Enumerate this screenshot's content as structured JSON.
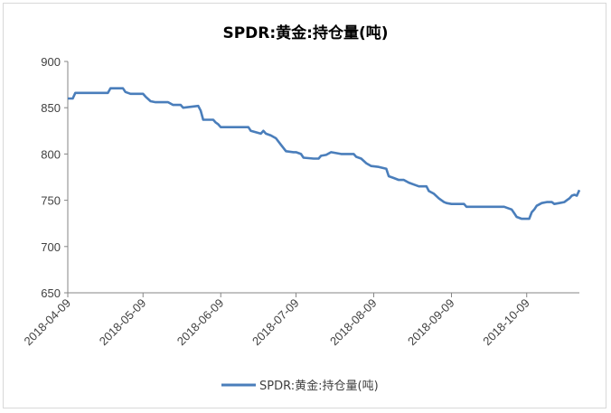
{
  "chart_data": {
    "type": "line",
    "title": "SPDR:黄金:持仓量(吨)",
    "xlabel": "",
    "ylabel": "",
    "ylim": [
      650,
      900
    ],
    "y_ticks": [
      650,
      700,
      750,
      800,
      850,
      900
    ],
    "x_tick_labels": [
      "2018-04-09",
      "2018-05-09",
      "2018-06-09",
      "2018-07-09",
      "2018-08-09",
      "2018-09-09",
      "2018-10-09"
    ],
    "xrange": [
      "2018-04-09",
      "2018-10-30"
    ],
    "grid": false,
    "legend_position": "bottom",
    "line_color": "#4a7ebb",
    "series": [
      {
        "name": "SPDR:黄金:持仓量(吨)",
        "points": [
          [
            "2018-04-09",
            860
          ],
          [
            "2018-04-11",
            860
          ],
          [
            "2018-04-12",
            866
          ],
          [
            "2018-04-20",
            866
          ],
          [
            "2018-04-25",
            866
          ],
          [
            "2018-04-26",
            871
          ],
          [
            "2018-05-01",
            871
          ],
          [
            "2018-05-02",
            867
          ],
          [
            "2018-05-04",
            865
          ],
          [
            "2018-05-09",
            865
          ],
          [
            "2018-05-10",
            862
          ],
          [
            "2018-05-12",
            857
          ],
          [
            "2018-05-14",
            856
          ],
          [
            "2018-05-19",
            856
          ],
          [
            "2018-05-21",
            853
          ],
          [
            "2018-05-24",
            853
          ],
          [
            "2018-05-25",
            850
          ],
          [
            "2018-05-28",
            851
          ],
          [
            "2018-05-31",
            852
          ],
          [
            "2018-06-01",
            847
          ],
          [
            "2018-06-02",
            837
          ],
          [
            "2018-06-06",
            837
          ],
          [
            "2018-06-07",
            834
          ],
          [
            "2018-06-08",
            832
          ],
          [
            "2018-06-09",
            829
          ],
          [
            "2018-06-12",
            829
          ],
          [
            "2018-06-16",
            829
          ],
          [
            "2018-06-20",
            829
          ],
          [
            "2018-06-21",
            825
          ],
          [
            "2018-06-25",
            822
          ],
          [
            "2018-06-26",
            825
          ],
          [
            "2018-06-27",
            822
          ],
          [
            "2018-06-29",
            820
          ],
          [
            "2018-07-01",
            817
          ],
          [
            "2018-07-03",
            810
          ],
          [
            "2018-07-05",
            803
          ],
          [
            "2018-07-08",
            802
          ],
          [
            "2018-07-09",
            802
          ],
          [
            "2018-07-11",
            800
          ],
          [
            "2018-07-12",
            796
          ],
          [
            "2018-07-16",
            795
          ],
          [
            "2018-07-18",
            795
          ],
          [
            "2018-07-19",
            798
          ],
          [
            "2018-07-21",
            799
          ],
          [
            "2018-07-23",
            802
          ],
          [
            "2018-07-25",
            801
          ],
          [
            "2018-07-27",
            800
          ],
          [
            "2018-08-01",
            800
          ],
          [
            "2018-08-02",
            797
          ],
          [
            "2018-08-04",
            795
          ],
          [
            "2018-08-06",
            790
          ],
          [
            "2018-08-08",
            787
          ],
          [
            "2018-08-11",
            786
          ],
          [
            "2018-08-14",
            784
          ],
          [
            "2018-08-15",
            776
          ],
          [
            "2018-08-17",
            774
          ],
          [
            "2018-08-19",
            772
          ],
          [
            "2018-08-21",
            772
          ],
          [
            "2018-08-23",
            769
          ],
          [
            "2018-08-25",
            767
          ],
          [
            "2018-08-27",
            765
          ],
          [
            "2018-08-30",
            765
          ],
          [
            "2018-08-31",
            760
          ],
          [
            "2018-09-02",
            757
          ],
          [
            "2018-09-04",
            752
          ],
          [
            "2018-09-06",
            748
          ],
          [
            "2018-09-07",
            747
          ],
          [
            "2018-09-09",
            746
          ],
          [
            "2018-09-14",
            746
          ],
          [
            "2018-09-15",
            743
          ],
          [
            "2018-09-25",
            743
          ],
          [
            "2018-09-30",
            743
          ],
          [
            "2018-10-01",
            742
          ],
          [
            "2018-10-03",
            740
          ],
          [
            "2018-10-04",
            736
          ],
          [
            "2018-10-05",
            732
          ],
          [
            "2018-10-07",
            730
          ],
          [
            "2018-10-10",
            730
          ],
          [
            "2018-10-11",
            737
          ],
          [
            "2018-10-12",
            740
          ],
          [
            "2018-10-13",
            744
          ],
          [
            "2018-10-15",
            747
          ],
          [
            "2018-10-17",
            748
          ],
          [
            "2018-10-19",
            748
          ],
          [
            "2018-10-20",
            746
          ],
          [
            "2018-10-22",
            747
          ],
          [
            "2018-10-24",
            748
          ],
          [
            "2018-10-25",
            750
          ],
          [
            "2018-10-26",
            752
          ],
          [
            "2018-10-27",
            755
          ],
          [
            "2018-10-28",
            756
          ],
          [
            "2018-10-29",
            755
          ],
          [
            "2018-10-30",
            761
          ]
        ]
      }
    ]
  }
}
